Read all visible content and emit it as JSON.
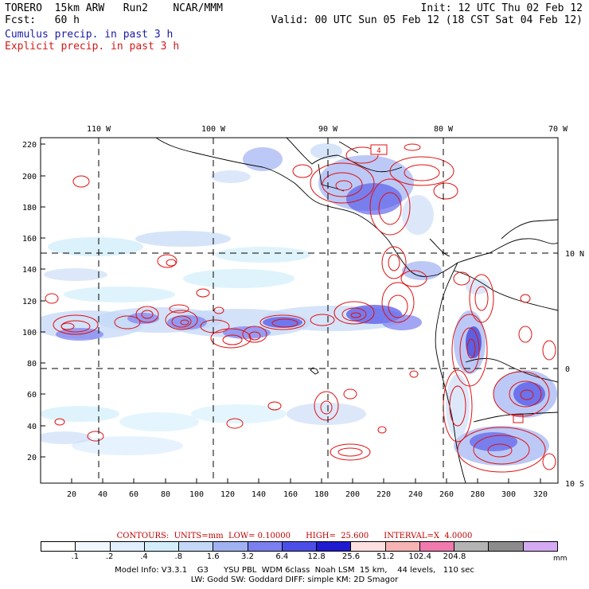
{
  "header": {
    "title_left": "TORERO  15km ARW   Run2    NCAR/MMM",
    "init": "Init: 12 UTC Thu 02 Feb 12",
    "fcst": "Fcst:   60 h",
    "valid": "Valid: 00 UTC Sun 05 Feb 12 (18 CST Sat 04 Feb 12)",
    "legend_blue": "Cumulus precip. in past 3 h",
    "legend_red": "Explicit precip. in past 3 h"
  },
  "map": {
    "top_lon_labels": [
      "110 W",
      "100 W",
      "90 W",
      "80 W",
      "70 W"
    ],
    "right_lat_labels": [
      "10 N",
      "0",
      "10 S"
    ],
    "left_ticks": [
      "220",
      "200",
      "180",
      "160",
      "140",
      "120",
      "100",
      "80",
      "60",
      "40",
      "20"
    ],
    "bottom_ticks": [
      "20",
      "40",
      "60",
      "80",
      "100",
      "120",
      "140",
      "160",
      "180",
      "200",
      "220",
      "240",
      "260",
      "280",
      "300",
      "320"
    ],
    "box_labels": [
      "4"
    ],
    "colors": {
      "land_line": "#000000",
      "grid": "#000000",
      "contour": "#e01010"
    }
  },
  "contour_info": "CONTOURS:  UNITS=mm  LOW= 0.10000      HIGH=  25.600      INTERVAL=X  4.0000",
  "colorbar": {
    "colors": [
      "#ffffff",
      "#f2f7ff",
      "#e1efff",
      "#d2eefb",
      "#c4d8f7",
      "#a0b2f2",
      "#7b7fef",
      "#4b4fe7",
      "#1e1bd0",
      "#ffe0e0",
      "#f6b4b4",
      "#f07aae",
      "#b4b4b4",
      "#8c8c8c",
      "#d4aaf2"
    ],
    "labels": [
      ".1",
      ".2",
      ".4",
      ".8",
      "1.6",
      "3.2",
      "6.4",
      "12.8",
      "25.6",
      "51.2",
      "102.4",
      "204.8"
    ],
    "unit": "mm"
  },
  "model_info": {
    "line1": "Model Info: V3.3.1    G3      YSU PBL  WDM 6class  Noah LSM  15 km,    44 levels,   110 sec",
    "line2": "LW: Godd SW: Goddard DIFF: simple KM: 2D Smagor"
  }
}
